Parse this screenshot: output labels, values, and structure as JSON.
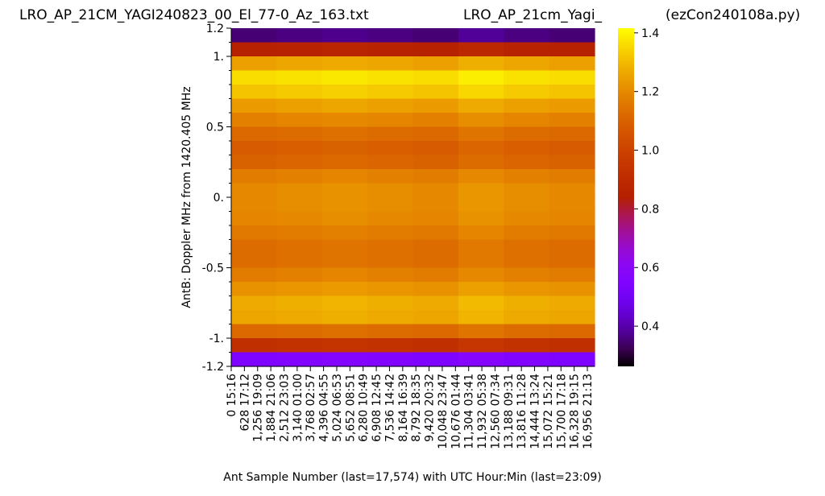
{
  "chart_data": {
    "type": "heatmap",
    "titles": [
      "LRO_AP_21CM_YAGI240823_00_El_77-0_Az_163.txt",
      "LRO_AP_21cm_Yagi_",
      "(ezCon240108a.py)"
    ],
    "x_label": "Ant Sample Number (last=17,574) with UTC Hour:Min (last=23:09)",
    "y_label": "AntB:  Doppler MHz from 1420.405 MHz",
    "colormap": "gnuplot",
    "xlim": [
      0,
      17300
    ],
    "ylim": [
      -1.2,
      1.2
    ],
    "xticks": [
      {
        "value": 0,
        "label": "0  15:16"
      },
      {
        "value": 628,
        "label": "628  17:12"
      },
      {
        "value": 1256,
        "label": "1,256  19:09"
      },
      {
        "value": 1884,
        "label": "1,884  21:06"
      },
      {
        "value": 2512,
        "label": "2,512  23:03"
      },
      {
        "value": 3140,
        "label": "3,140  01:00"
      },
      {
        "value": 3768,
        "label": "3,768  02:57"
      },
      {
        "value": 4396,
        "label": "4,396  04:55"
      },
      {
        "value": 5024,
        "label": "5,024  06:53"
      },
      {
        "value": 5652,
        "label": "5,652  08:51"
      },
      {
        "value": 6280,
        "label": "6,280  10:49"
      },
      {
        "value": 6908,
        "label": "6,908  12:45"
      },
      {
        "value": 7536,
        "label": "7,536  14:42"
      },
      {
        "value": 8164,
        "label": "8,164  16:39"
      },
      {
        "value": 8792,
        "label": "8,792  18:35"
      },
      {
        "value": 9420,
        "label": "9,420  20:32"
      },
      {
        "value": 10048,
        "label": "10,048  23:47"
      },
      {
        "value": 10676,
        "label": "10,676  01:44"
      },
      {
        "value": 11304,
        "label": "11,304  03:41"
      },
      {
        "value": 11932,
        "label": "11,932  05:38"
      },
      {
        "value": 12560,
        "label": "12,560  07:34"
      },
      {
        "value": 13188,
        "label": "13,188  09:31"
      },
      {
        "value": 13816,
        "label": "13,816  11:28"
      },
      {
        "value": 14444,
        "label": "14,444  13:24"
      },
      {
        "value": 15072,
        "label": "15,072  15:21"
      },
      {
        "value": 15700,
        "label": "15,700  17:18"
      },
      {
        "value": 16328,
        "label": "16,328  19:15"
      },
      {
        "value": 16956,
        "label": "16,956  21:13"
      }
    ],
    "yticks": [
      1.2,
      {
        "value": 1,
        "label": "1."
      },
      0.5,
      {
        "value": 0,
        "label": "0."
      },
      -0.5,
      {
        "value": -1,
        "label": "-1."
      },
      -1.2
    ],
    "yminorticks": [
      1.1,
      0.9,
      0.8,
      0.7,
      0.6,
      0.4,
      0.3,
      0.2,
      0.1,
      -0.1,
      -0.2,
      -0.3,
      -0.4,
      -0.6,
      -0.7,
      -0.8,
      -0.9,
      -1.1
    ],
    "y": [
      1.15,
      1.05,
      0.95,
      0.85,
      0.75,
      0.65,
      0.55,
      0.45,
      0.35,
      0.25,
      0.15,
      0.05,
      -0.05,
      -0.15,
      -0.25,
      -0.35,
      -0.45,
      -0.55,
      -0.65,
      -0.75,
      -0.85,
      -0.95,
      -1.05,
      -1.15
    ],
    "values": [
      [
        0.35,
        0.36,
        0.37,
        0.36,
        0.35,
        0.38,
        0.36,
        0.35
      ],
      [
        0.85,
        0.86,
        0.87,
        0.86,
        0.85,
        0.88,
        0.86,
        0.85
      ],
      [
        1.25,
        1.26,
        1.27,
        1.26,
        1.25,
        1.28,
        1.26,
        1.25
      ],
      [
        1.36,
        1.37,
        1.38,
        1.37,
        1.36,
        1.39,
        1.37,
        1.36
      ],
      [
        1.32,
        1.33,
        1.34,
        1.33,
        1.32,
        1.35,
        1.33,
        1.32
      ],
      [
        1.24,
        1.25,
        1.26,
        1.25,
        1.24,
        1.27,
        1.25,
        1.24
      ],
      [
        1.18,
        1.19,
        1.2,
        1.19,
        1.18,
        1.21,
        1.19,
        1.18
      ],
      [
        1.12,
        1.13,
        1.14,
        1.13,
        1.12,
        1.15,
        1.13,
        1.12
      ],
      [
        1.08,
        1.09,
        1.1,
        1.09,
        1.08,
        1.11,
        1.09,
        1.08
      ],
      [
        1.1,
        1.11,
        1.12,
        1.11,
        1.1,
        1.13,
        1.11,
        1.1
      ],
      [
        1.17,
        1.18,
        1.19,
        1.18,
        1.17,
        1.2,
        1.18,
        1.17
      ],
      [
        1.2,
        1.21,
        1.22,
        1.21,
        1.2,
        1.23,
        1.21,
        1.2
      ],
      [
        1.2,
        1.21,
        1.22,
        1.21,
        1.2,
        1.23,
        1.21,
        1.2
      ],
      [
        1.19,
        1.2,
        1.21,
        1.2,
        1.19,
        1.22,
        1.2,
        1.19
      ],
      [
        1.16,
        1.17,
        1.18,
        1.17,
        1.16,
        1.19,
        1.17,
        1.16
      ],
      [
        1.13,
        1.14,
        1.15,
        1.14,
        1.13,
        1.16,
        1.14,
        1.13
      ],
      [
        1.13,
        1.14,
        1.15,
        1.14,
        1.13,
        1.16,
        1.14,
        1.13
      ],
      [
        1.17,
        1.18,
        1.19,
        1.18,
        1.17,
        1.2,
        1.18,
        1.17
      ],
      [
        1.22,
        1.23,
        1.24,
        1.23,
        1.22,
        1.25,
        1.23,
        1.22
      ],
      [
        1.27,
        1.28,
        1.29,
        1.28,
        1.27,
        1.3,
        1.28,
        1.27
      ],
      [
        1.26,
        1.27,
        1.28,
        1.27,
        1.26,
        1.29,
        1.27,
        1.26
      ],
      [
        1.12,
        1.13,
        1.14,
        1.13,
        1.12,
        1.15,
        1.13,
        1.12
      ],
      [
        0.92,
        0.93,
        0.94,
        0.93,
        0.92,
        0.95,
        0.93,
        0.92
      ],
      [
        0.55,
        0.56,
        0.57,
        0.56,
        0.55,
        0.58,
        0.56,
        0.55
      ]
    ],
    "clim": [
      0.263,
      1.416
    ],
    "cticks": [
      0.4,
      0.6,
      0.8,
      {
        "value": 1,
        "label": "1.0"
      },
      1.2,
      1.4
    ]
  }
}
